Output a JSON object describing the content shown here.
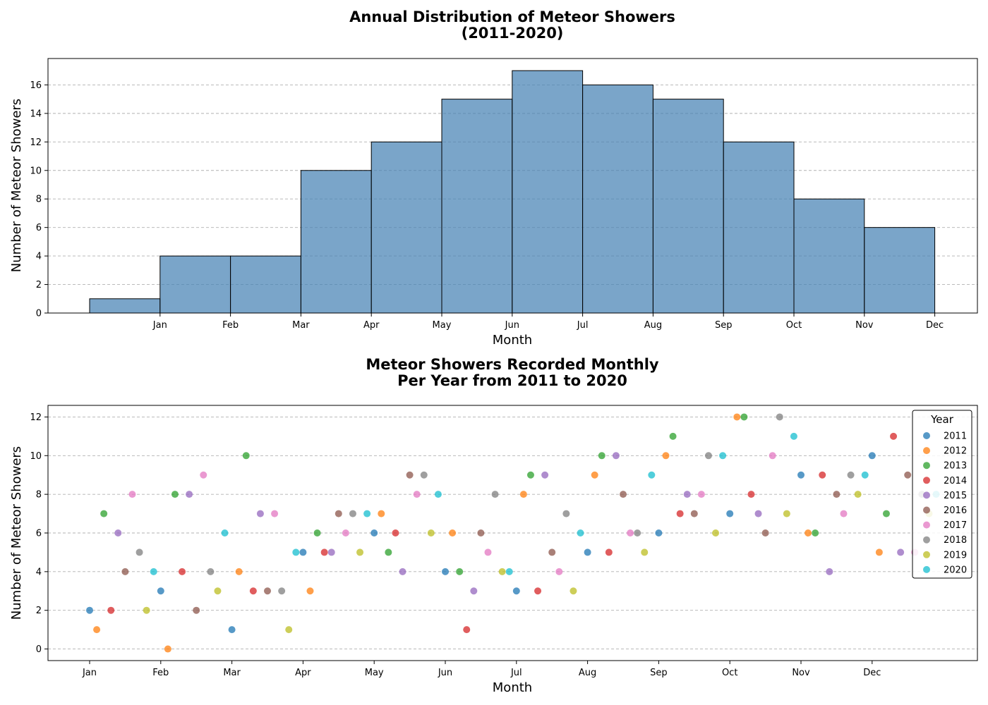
{
  "chart_data": [
    {
      "type": "bar",
      "title_line1": "Annual Distribution of Meteor Showers",
      "title_line2": "(2011-2020)",
      "xlabel": "Month",
      "ylabel": "Number of Meteor Showers",
      "tick_labels": [
        "Jan",
        "Feb",
        "Mar",
        "Apr",
        "May",
        "Jun",
        "Jul",
        "Aug",
        "Sep",
        "Oct",
        "Nov",
        "Dec"
      ],
      "bins": [
        {
          "from": 0,
          "to": 1,
          "value": 1
        },
        {
          "from": 1,
          "to": 2,
          "value": 4
        },
        {
          "from": 2,
          "to": 3,
          "value": 4
        },
        {
          "from": 3,
          "to": 4,
          "value": 10
        },
        {
          "from": 4,
          "to": 5,
          "value": 12
        },
        {
          "from": 5,
          "to": 6,
          "value": 15
        },
        {
          "from": 6,
          "to": 7,
          "value": 17
        },
        {
          "from": 7,
          "to": 8,
          "value": 16
        },
        {
          "from": 8,
          "to": 9,
          "value": 15
        },
        {
          "from": 9,
          "to": 10,
          "value": 12
        },
        {
          "from": 10,
          "to": 11,
          "value": 8
        },
        {
          "from": 11,
          "to": 12,
          "value": 6
        }
      ],
      "ylim": [
        0,
        17.85
      ],
      "yticks": [
        0,
        2,
        4,
        6,
        8,
        10,
        12,
        14,
        16
      ],
      "bar_color": "#4682b4",
      "grid": "y-dashed"
    },
    {
      "type": "scatter",
      "title_line1": "Meteor Showers Recorded Monthly",
      "title_line2": "Per Year from 2011 to 2020",
      "xlabel": "Month",
      "ylabel": "Number of Meteor Showers",
      "tick_labels": [
        "Jan",
        "Feb",
        "Mar",
        "Apr",
        "May",
        "Jun",
        "Jul",
        "Aug",
        "Sep",
        "Oct",
        "Nov",
        "Dec"
      ],
      "ylim": [
        -0.6,
        12.6
      ],
      "yticks": [
        0,
        2,
        4,
        6,
        8,
        10,
        12
      ],
      "legend_title": "Year",
      "legend_position": "top-right",
      "grid": "y-dashed",
      "series": [
        {
          "name": "2011",
          "color": "#1f77b4",
          "values": [
            2,
            3,
            1,
            5,
            6,
            4,
            3,
            5,
            6,
            7,
            9,
            10
          ]
        },
        {
          "name": "2012",
          "color": "#ff7f0e",
          "values": [
            1,
            0,
            4,
            3,
            7,
            6,
            8,
            9,
            10,
            12,
            6,
            5
          ]
        },
        {
          "name": "2013",
          "color": "#2ca02c",
          "values": [
            7,
            8,
            10,
            6,
            5,
            4,
            9,
            10,
            11,
            12,
            6,
            7
          ]
        },
        {
          "name": "2014",
          "color": "#d62728",
          "values": [
            2,
            4,
            3,
            5,
            6,
            1,
            3,
            5,
            7,
            8,
            9,
            11
          ]
        },
        {
          "name": "2015",
          "color": "#9467bd",
          "values": [
            6,
            8,
            7,
            5,
            4,
            3,
            9,
            10,
            8,
            7,
            4,
            5
          ]
        },
        {
          "name": "2016",
          "color": "#8c564b",
          "values": [
            4,
            2,
            3,
            7,
            9,
            6,
            5,
            8,
            7,
            6,
            8,
            9
          ]
        },
        {
          "name": "2017",
          "color": "#e377c2",
          "values": [
            8,
            9,
            7,
            6,
            8,
            5,
            4,
            6,
            8,
            10,
            7,
            5
          ]
        },
        {
          "name": "2018",
          "color": "#7f7f7f",
          "values": [
            5,
            4,
            3,
            7,
            9,
            8,
            7,
            6,
            10,
            12,
            9,
            8
          ]
        },
        {
          "name": "2019",
          "color": "#bcbd22",
          "values": [
            2,
            3,
            1,
            5,
            6,
            4,
            3,
            5,
            6,
            7,
            8,
            7
          ]
        },
        {
          "name": "2020",
          "color": "#17becf",
          "values": [
            4,
            6,
            5,
            7,
            8,
            4,
            6,
            9,
            10,
            11,
            9,
            8
          ]
        }
      ]
    }
  ]
}
